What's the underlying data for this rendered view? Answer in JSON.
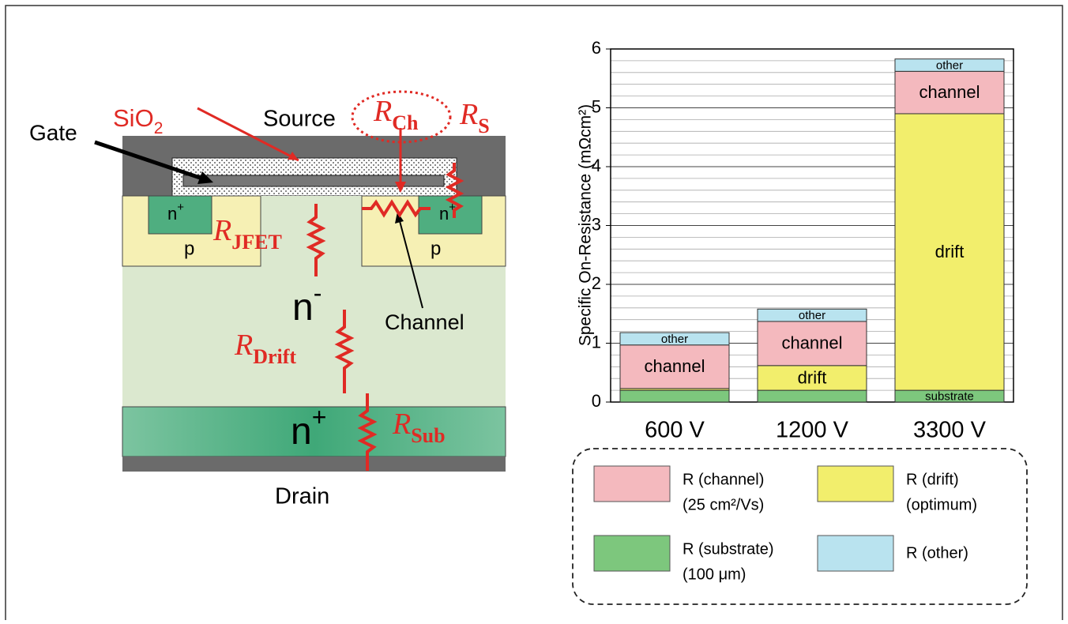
{
  "diagram": {
    "labels": {
      "sio2": {
        "text": "SiO",
        "sub": "2"
      },
      "source": "Source",
      "gate": "Gate",
      "r_ch": {
        "text": "R",
        "sub": "Ch"
      },
      "r_s": {
        "text": "R",
        "sub": "S"
      },
      "n_plus_left": {
        "text": "n",
        "sup": "+"
      },
      "n_plus_right": {
        "text": "n",
        "sup": "+"
      },
      "p_left": "p",
      "p_right": "p",
      "r_jfet": {
        "text": "R",
        "sub": "JFET"
      },
      "n_minus": {
        "text": "n",
        "sup": "-"
      },
      "channel": "Channel",
      "r_drift": {
        "text": "R",
        "sub": "Drift"
      },
      "n_plus_sub": {
        "text": "n",
        "sup": "+"
      },
      "r_sub": {
        "text": "R",
        "sub": "Sub"
      },
      "drain": "Drain"
    }
  },
  "chart_data": {
    "type": "stacked_bar",
    "y_label": "Specific On-Resistance (mΩcm²)",
    "categories": [
      "600 V",
      "1200 V",
      "3300 V"
    ],
    "series": [
      {
        "name": "R (substrate)",
        "note": "(100 μm)",
        "color": "#7dc77d",
        "values": [
          0.2,
          0.2,
          0.2
        ],
        "labels": [
          null,
          null,
          "substrate"
        ]
      },
      {
        "name": "R (drift)",
        "note": "(optimum)",
        "color": "#f2ee6c",
        "values": [
          0.03,
          0.42,
          4.7
        ],
        "labels": [
          null,
          "drift",
          "drift"
        ]
      },
      {
        "name": "R (channel)",
        "note": "(25 cm²/Vs)",
        "color": "#f4b9be",
        "values": [
          0.74,
          0.75,
          0.72
        ],
        "labels": [
          "channel",
          "channel",
          "channel"
        ]
      },
      {
        "name": "R (other)",
        "color": "#b9e3ef",
        "values": [
          0.21,
          0.21,
          0.21
        ],
        "labels": [
          "other",
          "other",
          "other"
        ]
      }
    ],
    "ylim": [
      0,
      6
    ],
    "yticks": [
      0,
      1,
      2,
      3,
      4,
      5,
      6
    ],
    "grid": true,
    "minor_grid": 0.2
  }
}
